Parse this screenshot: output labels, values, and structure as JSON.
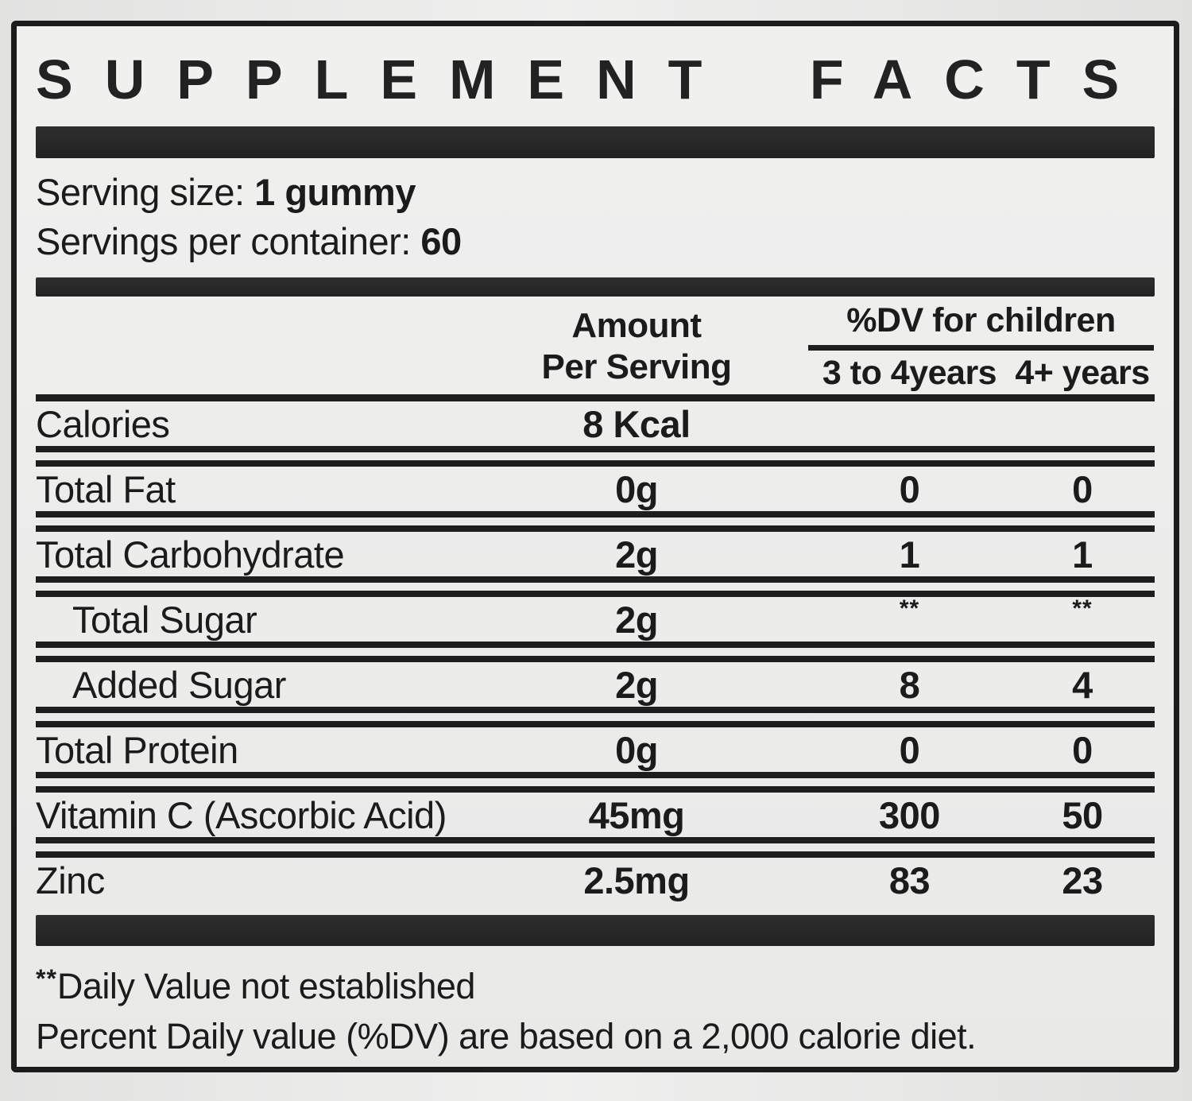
{
  "label": {
    "title": "SUPPLEMENT FACTS",
    "serving": {
      "size_label": "Serving size:",
      "size_value": "1 gummy",
      "per_container_label": "Servings per container:",
      "per_container_value": "60"
    },
    "table": {
      "header": {
        "amount_line1": "Amount",
        "amount_line2": "Per Serving",
        "dv_group": "%DV for children",
        "dv_col_3to4": "3 to 4years",
        "dv_col_4plus": "4+ years"
      },
      "rows": [
        {
          "name": "Calories",
          "amount": "8 Kcal",
          "dv_3to4": "",
          "dv_4plus": ""
        },
        {
          "name": "Total Fat",
          "amount": "0g",
          "dv_3to4": "0",
          "dv_4plus": "0"
        },
        {
          "name": "Total Carbohydrate",
          "amount": "2g",
          "dv_3to4": "1",
          "dv_4plus": "1"
        },
        {
          "name": "Total Sugar",
          "amount": "2g",
          "dv_3to4": "**",
          "dv_4plus": "**"
        },
        {
          "name": "Added Sugar",
          "amount": "2g",
          "dv_3to4": "8",
          "dv_4plus": "4"
        },
        {
          "name": "Total Protein",
          "amount": "0g",
          "dv_3to4": "0",
          "dv_4plus": "0"
        },
        {
          "name": "Vitamin C (Ascorbic Acid)",
          "amount": "45mg",
          "dv_3to4": "300",
          "dv_4plus": "50"
        },
        {
          "name": "Zinc",
          "amount": "2.5mg",
          "dv_3to4": "83",
          "dv_4plus": "23"
        }
      ]
    },
    "footnotes": {
      "marker": "**",
      "line1": "Daily Value not established",
      "line2": "Percent Daily value (%DV) are based on a 2,000 calorie diet."
    }
  },
  "colors": {
    "ink": "#1b1b1b",
    "label_background": "#ececeb",
    "bar": "#262626"
  }
}
